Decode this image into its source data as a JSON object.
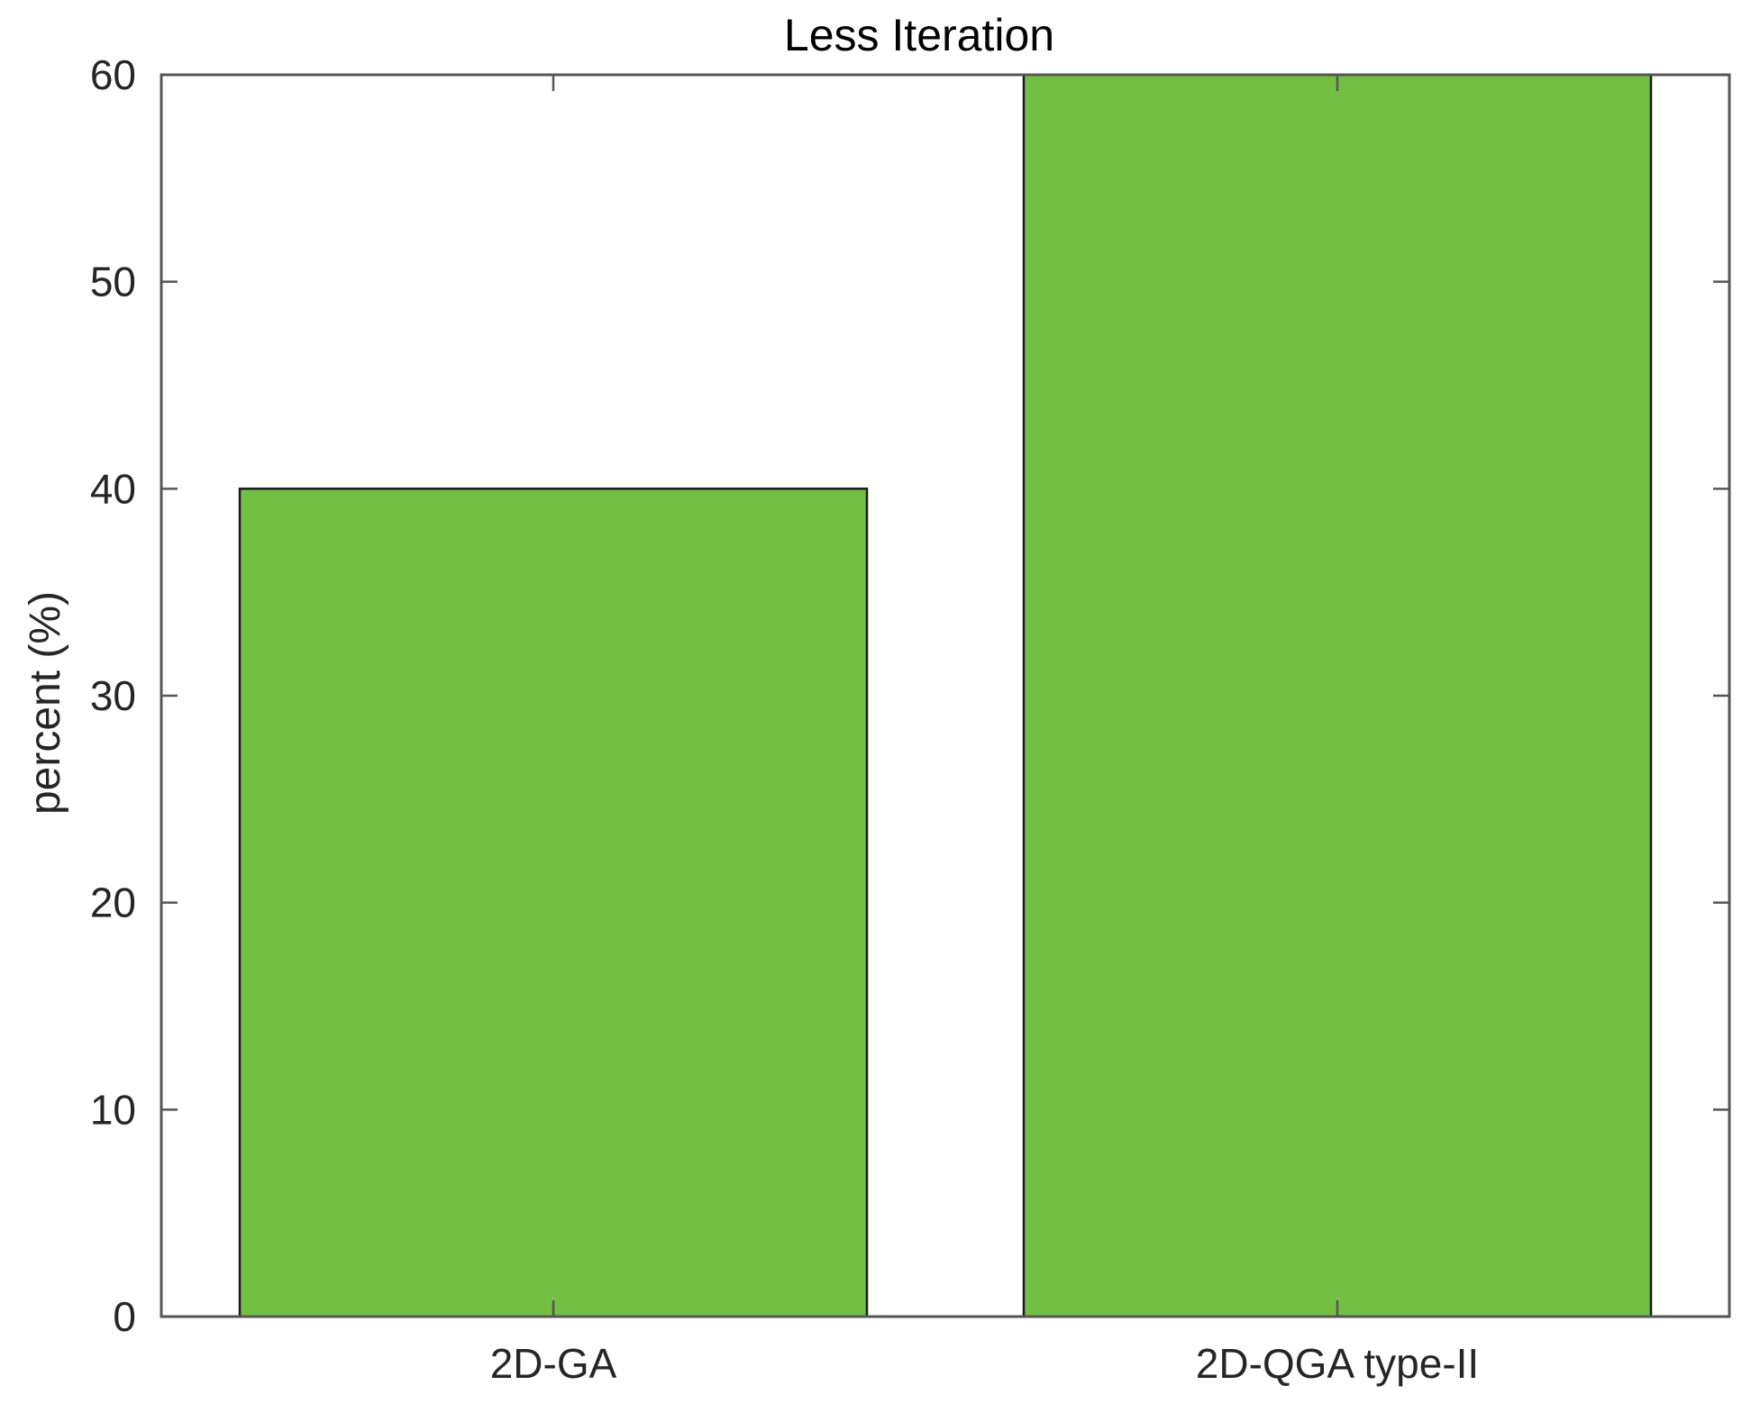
{
  "chart_data": {
    "type": "bar",
    "title": "Less Iteration",
    "xlabel": "",
    "ylabel": "percent (%)",
    "categories": [
      "2D-GA",
      "2D-QGA type-II"
    ],
    "values": [
      40,
      60
    ],
    "ylim": [
      0,
      60
    ],
    "yticks": [
      0,
      10,
      20,
      30,
      40,
      50,
      60
    ],
    "ytick_labels": [
      "0",
      "10",
      "20",
      "30",
      "40",
      "50",
      "60"
    ],
    "grid": false,
    "legend": "none",
    "colors": {
      "bar": "#72bf44",
      "bar_edge": "#1a1a1a",
      "axes": "#555555"
    }
  }
}
